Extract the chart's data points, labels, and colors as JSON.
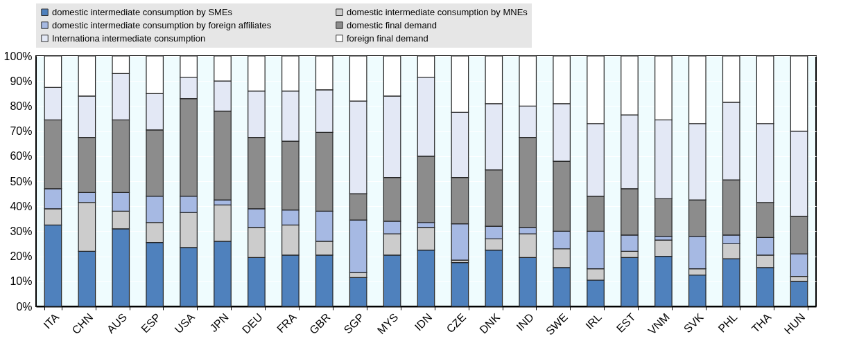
{
  "chart_data": {
    "type": "bar",
    "stacked": true,
    "legend": "top",
    "grid": "y",
    "categories": [
      "ITA",
      "CHN",
      "AUS",
      "ESP",
      "USA",
      "JPN",
      "DEU",
      "FRA",
      "GBR",
      "SGP",
      "MYS",
      "IDN",
      "CZE",
      "DNK",
      "IND",
      "SWE",
      "IRL",
      "EST",
      "VNM",
      "SVK",
      "PHL",
      "THA",
      "HUN"
    ],
    "ylim": [
      0,
      100
    ],
    "yticks": [
      {
        "value": 0,
        "label": "0%"
      },
      {
        "value": 10,
        "label": "10%"
      },
      {
        "value": 20,
        "label": "20%"
      },
      {
        "value": 30,
        "label": "30%"
      },
      {
        "value": 40,
        "label": "40%"
      },
      {
        "value": 50,
        "label": "50%"
      },
      {
        "value": 60,
        "label": "60%"
      },
      {
        "value": 70,
        "label": "70%"
      },
      {
        "value": 80,
        "label": "80%"
      },
      {
        "value": 90,
        "label": "90%"
      },
      {
        "value": 100,
        "label": "100%"
      }
    ],
    "series": [
      {
        "name": "domestic intermediate consumption by SMEs",
        "color": "#4f81bd",
        "values": [
          32.5,
          22,
          31,
          25.5,
          23.5,
          26,
          19.5,
          20.5,
          20.5,
          11.5,
          20.5,
          22.5,
          17.5,
          22.5,
          19.5,
          15.5,
          10.5,
          19.5,
          20,
          12.5,
          19,
          15.5,
          10
        ]
      },
      {
        "name": "domestic intermediate consumption by MNEs",
        "color": "#cccccc",
        "values": [
          6.5,
          19.5,
          7,
          8,
          14,
          14.5,
          12,
          12,
          5.5,
          2,
          8.5,
          9,
          1,
          4.5,
          9.5,
          7.5,
          4.5,
          2.5,
          6.5,
          2.5,
          6,
          5,
          2
        ]
      },
      {
        "name": "domestic intermediate consumption by foreign affiliates",
        "color": "#a6b9e3",
        "values": [
          8,
          4,
          7.5,
          10.5,
          6.5,
          2,
          7.5,
          6,
          12,
          21,
          5,
          2,
          14.5,
          5,
          2.5,
          7,
          15,
          6.5,
          1.5,
          13,
          3.5,
          7,
          9
        ]
      },
      {
        "name": "domestic final demand",
        "color": "#8c8c8c",
        "values": [
          27.5,
          22,
          29,
          26.5,
          39,
          35.5,
          28.5,
          27.5,
          31.5,
          10.5,
          17.5,
          26.5,
          18.5,
          22.5,
          36,
          28,
          14,
          18.5,
          15,
          14.5,
          22,
          14,
          15
        ]
      },
      {
        "name": "Internationa intermediate consumption",
        "color": "#e3e8f5",
        "values": [
          13,
          16.5,
          18.5,
          14.5,
          8.5,
          12,
          18.5,
          20,
          17,
          37,
          32.5,
          31.5,
          26,
          26.5,
          12.5,
          23,
          29,
          29.5,
          31.5,
          30.5,
          31,
          31.5,
          34
        ]
      },
      {
        "name": "foreign final demand",
        "color": "#ffffff",
        "values": [
          12.5,
          16,
          7,
          15,
          8.5,
          10,
          14,
          14,
          13.5,
          18,
          16,
          8.5,
          22.5,
          19,
          20,
          19,
          27,
          23.5,
          25.5,
          27,
          18.5,
          27,
          30
        ]
      }
    ]
  }
}
